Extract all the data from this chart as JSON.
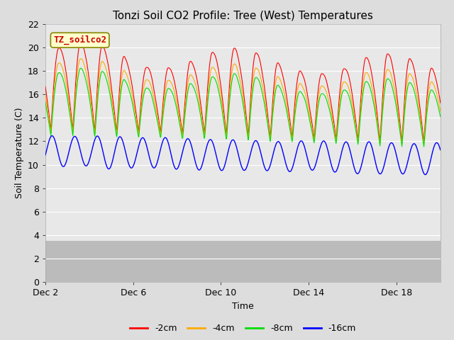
{
  "title": "Tonzi Soil CO2 Profile: Tree (West) Temperatures",
  "xlabel": "Time",
  "ylabel": "Soil Temperature (C)",
  "ylim": [
    0,
    22
  ],
  "yticks": [
    0,
    2,
    4,
    6,
    8,
    10,
    12,
    14,
    16,
    18,
    20,
    22
  ],
  "x_tick_labels": [
    "Dec 2",
    "Dec 6",
    "Dec 10",
    "Dec 14",
    "Dec 18"
  ],
  "x_tick_positions": [
    2,
    6,
    10,
    14,
    18
  ],
  "x_start": 2,
  "n_days": 18,
  "colors": {
    "2cm": "#ff0000",
    "4cm": "#ffaa00",
    "8cm": "#00dd00",
    "16cm": "#0000ff"
  },
  "legend_labels": [
    "-2cm",
    "-4cm",
    "-8cm",
    "-16cm"
  ],
  "watermark_text": "TZ_soilco2",
  "watermark_bg": "#ffffcc",
  "watermark_border": "#888800",
  "fig_bg": "#dddddd",
  "plot_bg_upper": "#e8e8e8",
  "plot_bg_lower": "#cccccc",
  "title_fontsize": 11,
  "axis_label_fontsize": 9,
  "tick_fontsize": 9
}
